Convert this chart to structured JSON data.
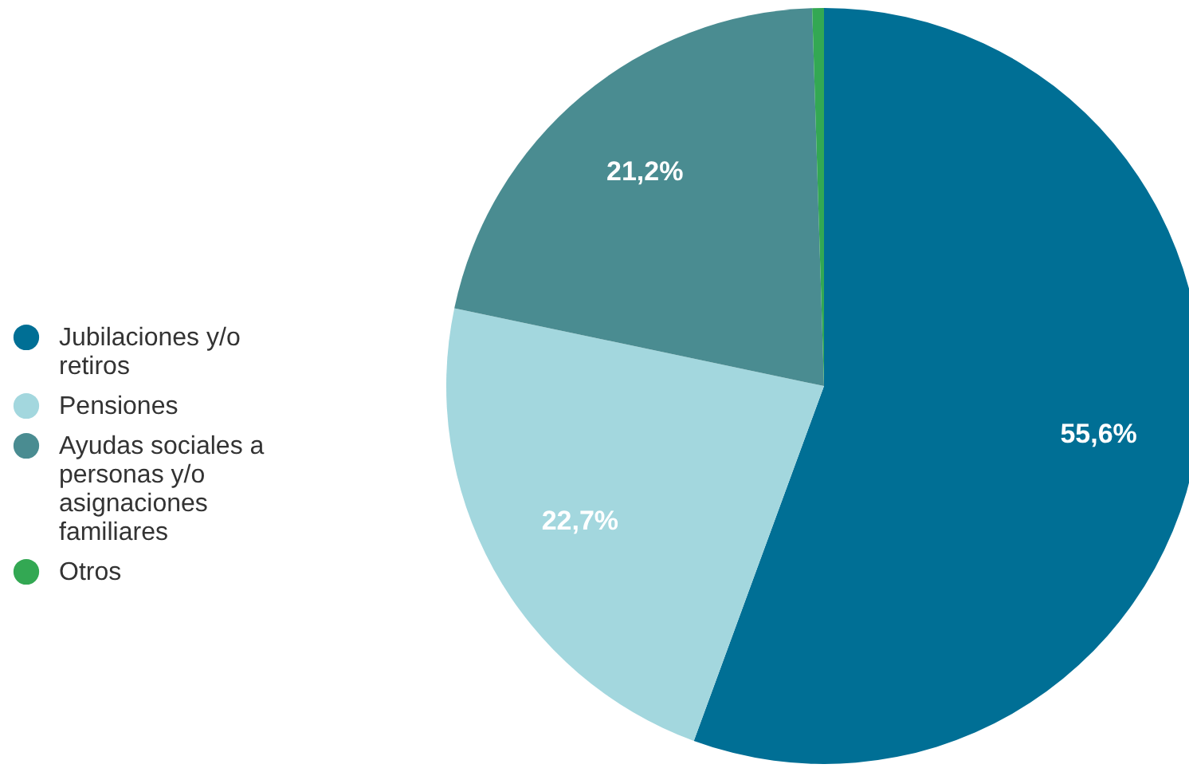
{
  "chart_data": {
    "type": "pie",
    "categories": [
      "Jubilaciones y/o retiros",
      "Pensiones",
      "Ayudas sociales a personas y/o asignaciones familiares",
      "Otros"
    ],
    "values": [
      55.6,
      22.7,
      21.2,
      0.5
    ],
    "colors": [
      "#006f95",
      "#a3d7de",
      "#4a8c91",
      "#33a853"
    ],
    "value_labels": [
      "55,6%",
      "22,7%",
      "21,2%",
      null
    ],
    "legend": "left"
  }
}
